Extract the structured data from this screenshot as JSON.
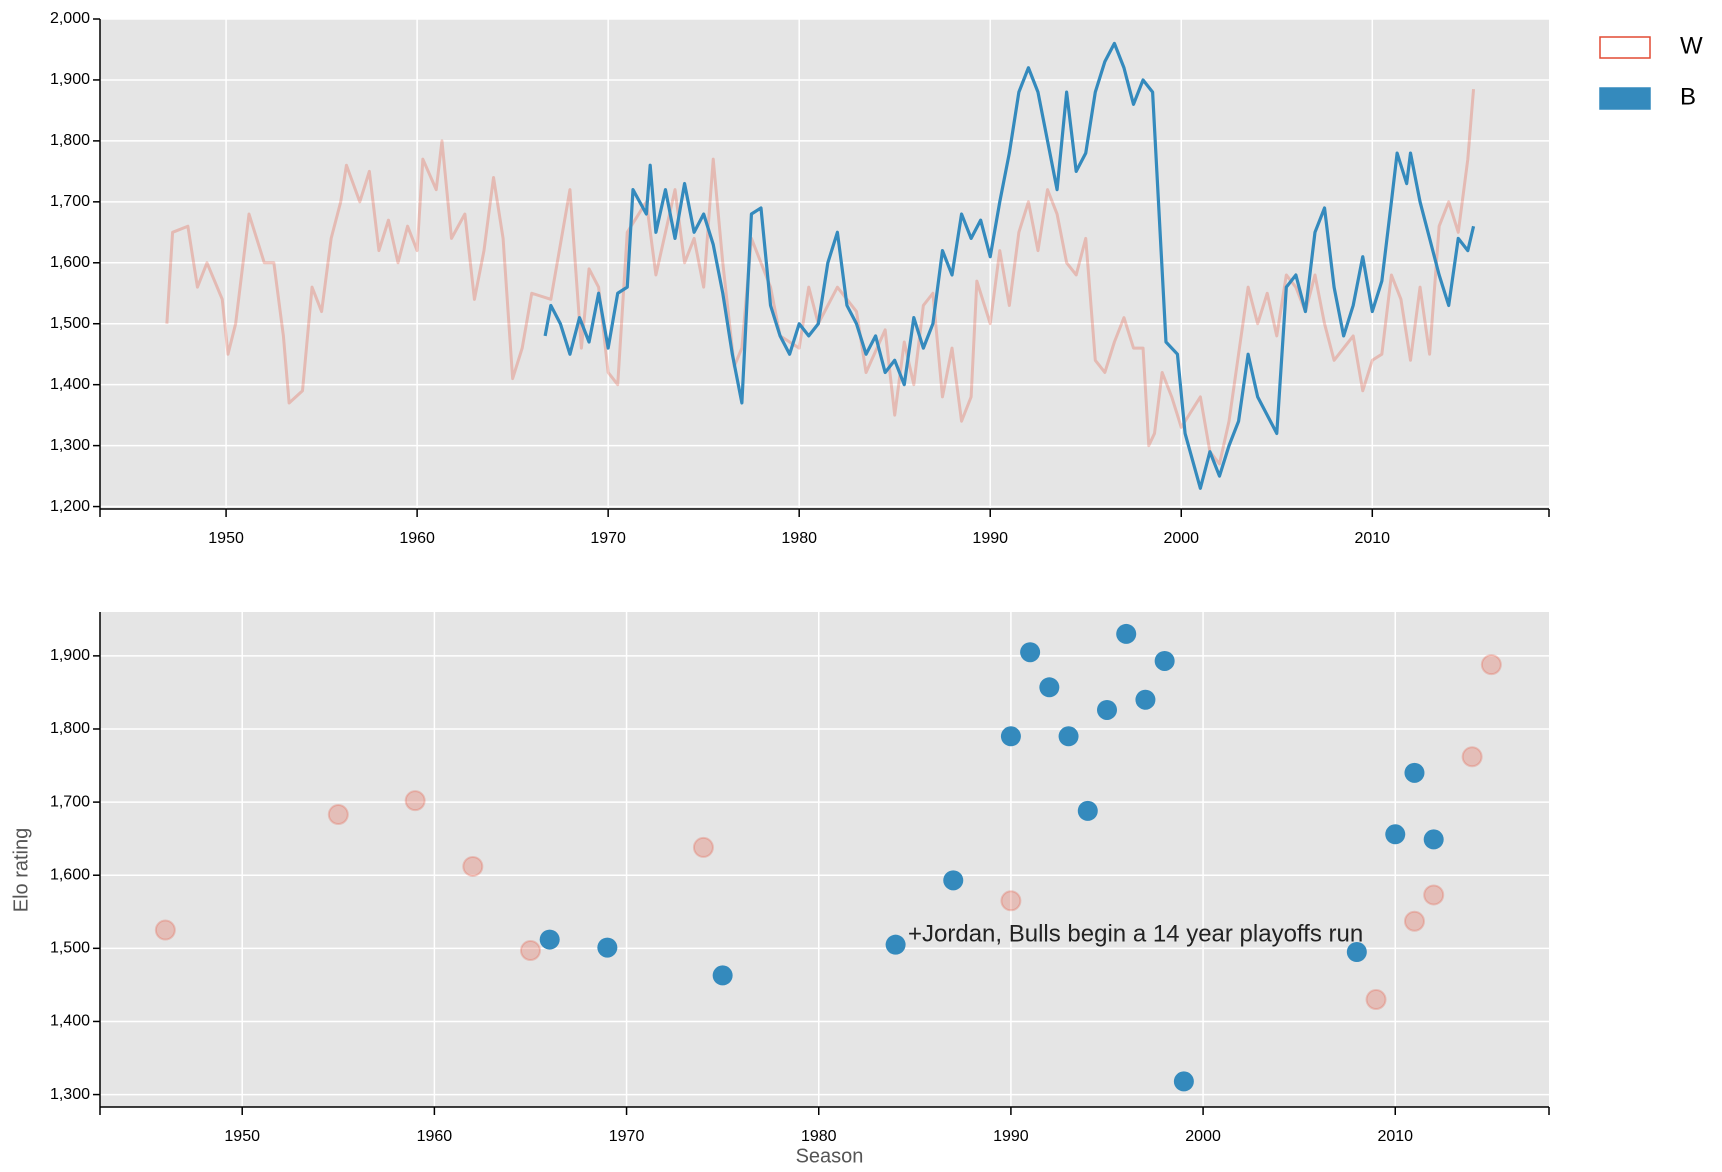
{
  "chart_data": [
    {
      "type": "line",
      "xlim": [
        1943.4,
        2019.25
      ],
      "ylim": [
        1196,
        2000
      ],
      "xticks": [
        1950,
        1960,
        1970,
        1980,
        1990,
        2000,
        2010
      ],
      "yticks": [
        {
          "value": 1200,
          "label": "1,200"
        },
        {
          "value": 1300,
          "label": "1,300"
        },
        {
          "value": 1400,
          "label": "1,400"
        },
        {
          "value": 1500,
          "label": "1,500"
        },
        {
          "value": 1600,
          "label": "1,600"
        },
        {
          "value": 1700,
          "label": "1,700"
        },
        {
          "value": 1800,
          "label": "1,800"
        },
        {
          "value": 1900,
          "label": "1,900"
        },
        {
          "value": 2000,
          "label": "2,000"
        }
      ],
      "grid": true,
      "legend": "right",
      "series": [
        {
          "name": "W",
          "color": "#e24a33",
          "x": [
            1946.9,
            1947.2,
            1948,
            1948.5,
            1949,
            1949.8,
            1950.1,
            1950.5,
            1951.2,
            1952,
            1952.5,
            1953,
            1953.3,
            1954,
            1954.5,
            1955,
            1955.5,
            1956,
            1956.3,
            1957,
            1957.5,
            1958,
            1958.5,
            1959,
            1959.5,
            1960,
            1960.3,
            1961,
            1961.3,
            1961.8,
            1962.5,
            1963,
            1963.5,
            1964,
            1964.5,
            1965,
            1965.5,
            1966,
            1967,
            1968,
            1968.6,
            1969,
            1969.5,
            1970,
            1970.5,
            1971,
            1972,
            1972.5,
            1973.5,
            1974,
            1974.5,
            1975,
            1975.5,
            1976,
            1976.6,
            1977,
            1977.5,
            1978.5,
            1979,
            1980,
            1980.5,
            1981,
            1982,
            1983,
            1983.5,
            1984.5,
            1985,
            1985.5,
            1986,
            1986.5,
            1987,
            1987.5,
            1988,
            1988.5,
            1989,
            1989.3,
            1990,
            1990.5,
            1991,
            1991.5,
            1992,
            1992.5,
            1993,
            1993.5,
            1994,
            1994.5,
            1995,
            1995.5,
            1996,
            1996.5,
            1997,
            1997.5,
            1998,
            1998.3,
            1998.6,
            1999,
            1999.5,
            2000,
            2001,
            2001.5,
            2002,
            2002.5,
            2003,
            2003.5,
            2004,
            2004.5,
            2005,
            2005.5,
            2006,
            2006.5,
            2007,
            2007.5,
            2008,
            2009,
            2009.5,
            2010,
            2010.5,
            2011,
            2011.5,
            2012,
            2012.5,
            2013,
            2013.5,
            2014,
            2014.5,
            2015,
            2015.3
          ],
          "values": [
            1500,
            1650,
            1660,
            1560,
            1600,
            1540,
            1450,
            1500,
            1680,
            1600,
            1600,
            1480,
            1370,
            1390,
            1560,
            1520,
            1640,
            1700,
            1760,
            1700,
            1750,
            1620,
            1670,
            1600,
            1660,
            1620,
            1770,
            1720,
            1800,
            1640,
            1680,
            1540,
            1620,
            1740,
            1640,
            1410,
            1460,
            1550,
            1540,
            1720,
            1460,
            1590,
            1560,
            1420,
            1400,
            1650,
            1700,
            1580,
            1720,
            1600,
            1640,
            1560,
            1770,
            1600,
            1430,
            1460,
            1640,
            1560,
            1480,
            1460,
            1560,
            1500,
            1560,
            1520,
            1420,
            1490,
            1350,
            1470,
            1400,
            1530,
            1550,
            1380,
            1460,
            1340,
            1380,
            1570,
            1500,
            1620,
            1530,
            1650,
            1700,
            1620,
            1720,
            1680,
            1600,
            1580,
            1640,
            1440,
            1420,
            1470,
            1510,
            1460,
            1460,
            1300,
            1320,
            1420,
            1380,
            1330,
            1380,
            1290,
            1270,
            1340,
            1450,
            1560,
            1500,
            1550,
            1480,
            1580,
            1560,
            1520,
            1580,
            1500,
            1440,
            1480,
            1390,
            1440,
            1450,
            1580,
            1540,
            1440,
            1560,
            1450,
            1660,
            1700,
            1650,
            1770,
            1885
          ]
        },
        {
          "name": "B",
          "color": "#348abd",
          "x": [
            1966.7,
            1967,
            1967.5,
            1968,
            1968.5,
            1969,
            1969.5,
            1970,
            1970.5,
            1971,
            1971.3,
            1972,
            1972.2,
            1972.5,
            1973,
            1973.5,
            1974,
            1974.5,
            1975,
            1975.5,
            1976,
            1976.5,
            1977,
            1977.5,
            1978,
            1978.5,
            1979,
            1979.5,
            1980,
            1980.5,
            1981,
            1981.5,
            1982,
            1982.5,
            1983,
            1983.5,
            1984,
            1984.5,
            1985,
            1985.5,
            1986,
            1986.5,
            1987,
            1987.5,
            1988,
            1988.5,
            1989,
            1989.5,
            1990,
            1990.5,
            1991,
            1991.5,
            1992,
            1992.5,
            1993,
            1993.5,
            1994,
            1994.5,
            1995,
            1995.5,
            1996,
            1996.5,
            1997,
            1997.5,
            1998,
            1998.5,
            1999.2,
            1999.8,
            2000.2,
            2001,
            2001.5,
            2002,
            2002.5,
            2003,
            2003.5,
            2004,
            2004.5,
            2005,
            2005.5,
            2006,
            2006.5,
            2007,
            2007.5,
            2008,
            2008.5,
            2009,
            2009.5,
            2010,
            2010.5,
            2011,
            2011.3,
            2011.8,
            2012,
            2012.5,
            2013,
            2013.5,
            2014,
            2014.5,
            2015,
            2015.3
          ],
          "values": [
            1480,
            1530,
            1500,
            1450,
            1510,
            1470,
            1550,
            1460,
            1550,
            1560,
            1720,
            1680,
            1760,
            1650,
            1720,
            1640,
            1730,
            1650,
            1680,
            1630,
            1550,
            1450,
            1370,
            1680,
            1690,
            1530,
            1480,
            1450,
            1500,
            1480,
            1500,
            1600,
            1650,
            1530,
            1500,
            1450,
            1480,
            1420,
            1440,
            1400,
            1510,
            1460,
            1500,
            1620,
            1580,
            1680,
            1640,
            1670,
            1610,
            1700,
            1780,
            1880,
            1920,
            1880,
            1800,
            1720,
            1880,
            1750,
            1780,
            1880,
            1930,
            1960,
            1920,
            1860,
            1900,
            1880,
            1470,
            1450,
            1320,
            1230,
            1290,
            1250,
            1300,
            1340,
            1450,
            1380,
            1350,
            1320,
            1560,
            1580,
            1520,
            1650,
            1690,
            1560,
            1480,
            1530,
            1610,
            1520,
            1570,
            1700,
            1780,
            1730,
            1780,
            1700,
            1640,
            1580,
            1530,
            1640,
            1620,
            1660
          ]
        }
      ]
    },
    {
      "type": "scatter",
      "xlim": [
        1942.6,
        2018.0
      ],
      "ylim": [
        1283,
        1960
      ],
      "xticks": [
        1950,
        1960,
        1970,
        1980,
        1990,
        2000,
        2010
      ],
      "yticks": [
        {
          "value": 1300,
          "label": "1,300"
        },
        {
          "value": 1400,
          "label": "1,400"
        },
        {
          "value": 1500,
          "label": "1,500"
        },
        {
          "value": 1600,
          "label": "1,600"
        },
        {
          "value": 1700,
          "label": "1,700"
        },
        {
          "value": 1800,
          "label": "1,800"
        },
        {
          "value": 1900,
          "label": "1,900"
        }
      ],
      "grid": true,
      "x_label": "Season",
      "y_label": "Elo rating",
      "annotation": "+Jordan, Bulls begin a 14 year playoffs run",
      "series": [
        {
          "name": "W",
          "color": "#e24a33",
          "x": [
            1946,
            1955,
            1959,
            1962,
            1965,
            1974,
            1990,
            2009,
            2011,
            2012,
            2014,
            2015
          ],
          "values": [
            1525,
            1683,
            1702,
            1612,
            1497,
            1638,
            1565,
            1430,
            1537,
            1573,
            1762,
            1888
          ]
        },
        {
          "name": "B",
          "color": "#348abd",
          "x": [
            1966,
            1969,
            1975,
            1984,
            1987,
            1990,
            1991,
            1992,
            1993,
            1994,
            1995,
            1996,
            1997,
            1998,
            1999,
            2008,
            2010,
            2011,
            2012
          ],
          "values": [
            1512,
            1501,
            1463,
            1505,
            1593,
            1790,
            1905,
            1857,
            1790,
            1688,
            1826,
            1930,
            1840,
            1893,
            1318,
            1495,
            1656,
            1740,
            1649
          ]
        }
      ]
    }
  ]
}
